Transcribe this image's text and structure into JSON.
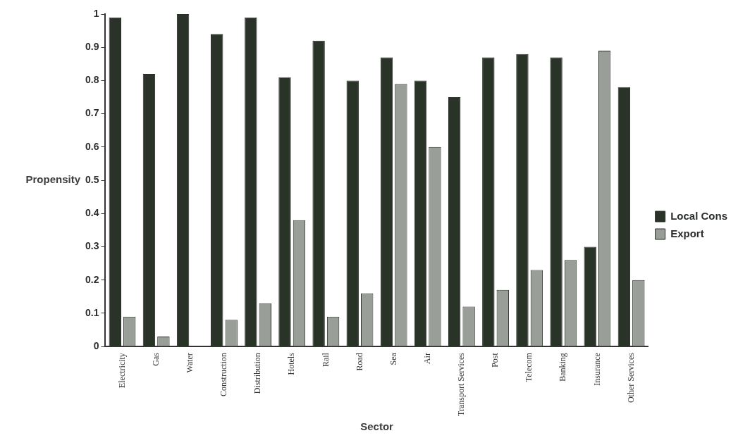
{
  "chart_data": {
    "type": "bar",
    "xlabel": "Sector",
    "ylabel": "Propensity",
    "categories": [
      "Electricity",
      "Gas",
      "Water",
      "Construction",
      "Distribution",
      "Hotels",
      "Rail",
      "Road",
      "Sea",
      "Air",
      "Transport Services",
      "Post",
      "Telecom",
      "Banking",
      "Insurance",
      "Other Services"
    ],
    "series": [
      {
        "name": "Local Cons",
        "color": "#2a3328",
        "values": [
          0.99,
          0.82,
          1.0,
          0.94,
          0.99,
          0.81,
          0.92,
          0.8,
          0.87,
          0.8,
          0.75,
          0.87,
          0.88,
          0.87,
          0.3,
          0.78
        ]
      },
      {
        "name": "Export",
        "color": "#9a9e98",
        "values": [
          0.09,
          0.03,
          0,
          0.08,
          0.13,
          0.38,
          0.09,
          0.16,
          0.79,
          0.6,
          0.12,
          0.17,
          0.23,
          0.26,
          0.89,
          0.2
        ]
      }
    ],
    "ylim": [
      0,
      1
    ],
    "yticks": [
      0,
      0.1,
      0.2,
      0.3,
      0.4,
      0.5,
      0.6,
      0.7,
      0.8,
      0.9,
      1
    ],
    "grid": false,
    "legend": "right"
  }
}
